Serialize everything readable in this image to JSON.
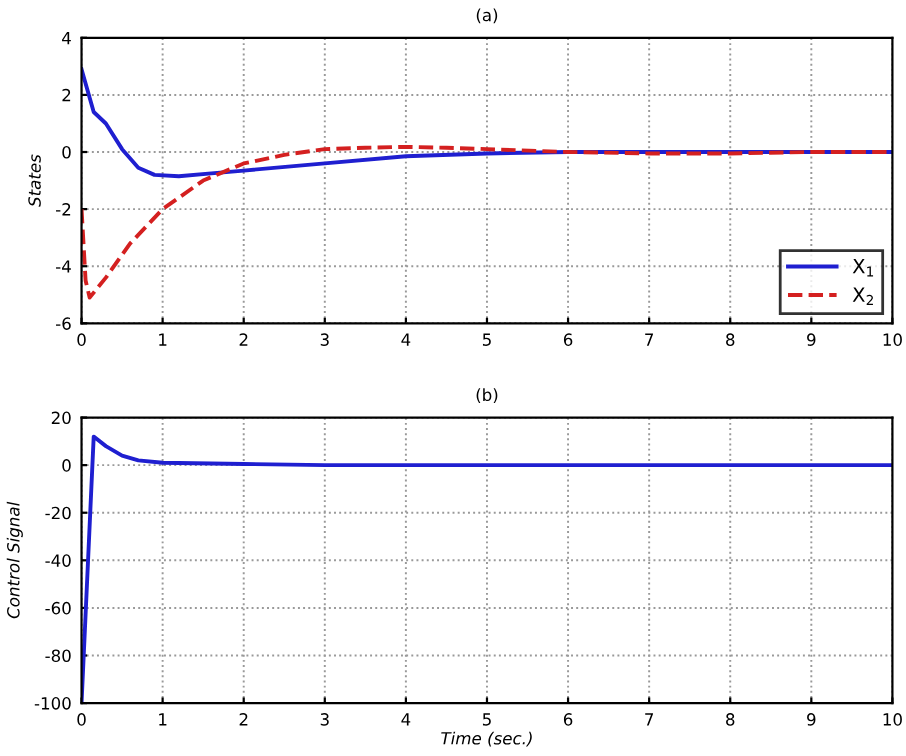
{
  "chart_data": [
    {
      "type": "line",
      "title": "(a)",
      "ylabel": "States",
      "xlim": [
        0,
        10
      ],
      "ylim": [
        -6,
        4
      ],
      "xticks": [
        0,
        1,
        2,
        3,
        4,
        5,
        6,
        7,
        8,
        9,
        10
      ],
      "yticks": [
        -6,
        -4,
        -2,
        0,
        2,
        4
      ],
      "grid": true,
      "legend": "bottom right",
      "series": [
        {
          "name": "X$_{1}$",
          "color": "#1f1fd0",
          "line_style": "solid",
          "x": [
            0,
            0.15,
            0.3,
            0.5,
            0.7,
            0.9,
            1.2,
            1.6,
            2,
            3,
            4,
            5,
            6,
            10
          ],
          "values": [
            2.9,
            1.4,
            1.0,
            0.1,
            -0.55,
            -0.8,
            -0.85,
            -0.75,
            -0.65,
            -0.4,
            -0.15,
            -0.05,
            0,
            0
          ]
        },
        {
          "name": "X$_{2}$",
          "color": "#d42020",
          "line_style": "dashed",
          "x": [
            0,
            0.05,
            0.1,
            0.3,
            0.6,
            1,
            1.5,
            2,
            2.5,
            3,
            3.5,
            4,
            4.5,
            5,
            6,
            7,
            8,
            9,
            10
          ],
          "values": [
            -2,
            -4.5,
            -5.1,
            -4.4,
            -3.2,
            -2.0,
            -1.0,
            -0.4,
            -0.1,
            0.1,
            0.15,
            0.18,
            0.15,
            0.1,
            0,
            -0.05,
            -0.05,
            0,
            0
          ]
        }
      ]
    },
    {
      "type": "line",
      "title": "(b)",
      "ylabel": "Control Signal",
      "xlabel": "Time (sec.)",
      "xlim": [
        0,
        10
      ],
      "ylim": [
        -100,
        20
      ],
      "xticks": [
        0,
        1,
        2,
        3,
        4,
        5,
        6,
        7,
        8,
        9,
        10
      ],
      "yticks": [
        -100,
        -80,
        -60,
        -40,
        -20,
        0,
        20
      ],
      "grid": true,
      "series": [
        {
          "color": "#1f1fd0",
          "line_style": "solid",
          "x": [
            0,
            0.15,
            0.3,
            0.5,
            0.7,
            1,
            2,
            3,
            10
          ],
          "values": [
            -100,
            12,
            8,
            4,
            2,
            1,
            0.5,
            0,
            0
          ]
        }
      ]
    }
  ]
}
